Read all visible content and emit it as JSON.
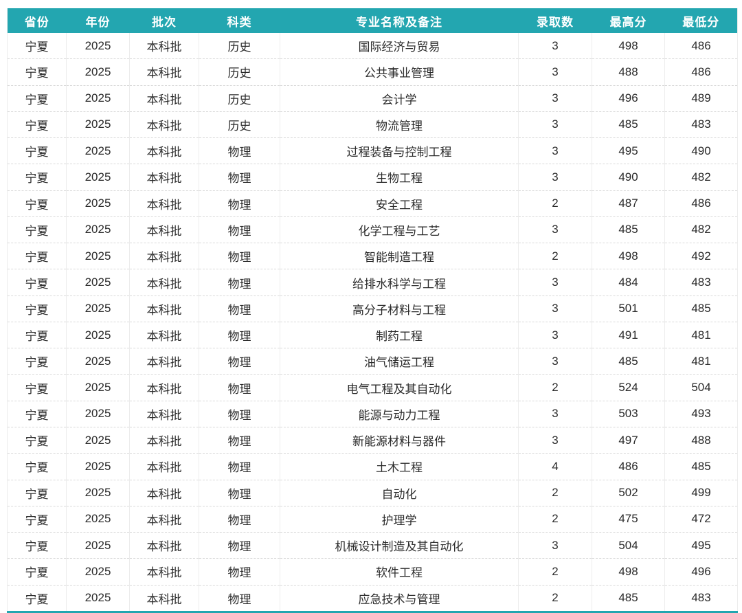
{
  "theme": {
    "header_background": "#23a6b0",
    "header_text_color": "#ffffff",
    "body_text_color": "#2b2b2b",
    "row_divider_color": "#d8d8d8",
    "column_divider_color": "#ececec",
    "bottom_border_color": "#23a6b0",
    "page_background": "#ffffff"
  },
  "chart_data": {
    "type": "table",
    "title": "",
    "column_keys": [
      "province",
      "year",
      "batch",
      "subject-type",
      "major-name",
      "admitted-count",
      "highest-score",
      "lowest-score"
    ],
    "columns": [
      "省份",
      "年份",
      "批次",
      "科类",
      "专业名称及备注",
      "录取数",
      "最高分",
      "最低分"
    ],
    "rows": [
      [
        "宁夏",
        "2025",
        "本科批",
        "历史",
        "国际经济与贸易",
        "3",
        "498",
        "486"
      ],
      [
        "宁夏",
        "2025",
        "本科批",
        "历史",
        "公共事业管理",
        "3",
        "488",
        "486"
      ],
      [
        "宁夏",
        "2025",
        "本科批",
        "历史",
        "会计学",
        "3",
        "496",
        "489"
      ],
      [
        "宁夏",
        "2025",
        "本科批",
        "历史",
        "物流管理",
        "3",
        "485",
        "483"
      ],
      [
        "宁夏",
        "2025",
        "本科批",
        "物理",
        "过程装备与控制工程",
        "3",
        "495",
        "490"
      ],
      [
        "宁夏",
        "2025",
        "本科批",
        "物理",
        "生物工程",
        "3",
        "490",
        "482"
      ],
      [
        "宁夏",
        "2025",
        "本科批",
        "物理",
        "安全工程",
        "2",
        "487",
        "486"
      ],
      [
        "宁夏",
        "2025",
        "本科批",
        "物理",
        "化学工程与工艺",
        "3",
        "485",
        "482"
      ],
      [
        "宁夏",
        "2025",
        "本科批",
        "物理",
        "智能制造工程",
        "2",
        "498",
        "492"
      ],
      [
        "宁夏",
        "2025",
        "本科批",
        "物理",
        "给排水科学与工程",
        "3",
        "484",
        "483"
      ],
      [
        "宁夏",
        "2025",
        "本科批",
        "物理",
        "高分子材料与工程",
        "3",
        "501",
        "485"
      ],
      [
        "宁夏",
        "2025",
        "本科批",
        "物理",
        "制药工程",
        "3",
        "491",
        "481"
      ],
      [
        "宁夏",
        "2025",
        "本科批",
        "物理",
        "油气储运工程",
        "3",
        "485",
        "481"
      ],
      [
        "宁夏",
        "2025",
        "本科批",
        "物理",
        "电气工程及其自动化",
        "2",
        "524",
        "504"
      ],
      [
        "宁夏",
        "2025",
        "本科批",
        "物理",
        "能源与动力工程",
        "3",
        "503",
        "493"
      ],
      [
        "宁夏",
        "2025",
        "本科批",
        "物理",
        "新能源材料与器件",
        "3",
        "497",
        "488"
      ],
      [
        "宁夏",
        "2025",
        "本科批",
        "物理",
        "土木工程",
        "4",
        "486",
        "485"
      ],
      [
        "宁夏",
        "2025",
        "本科批",
        "物理",
        "自动化",
        "2",
        "502",
        "499"
      ],
      [
        "宁夏",
        "2025",
        "本科批",
        "物理",
        "护理学",
        "2",
        "475",
        "472"
      ],
      [
        "宁夏",
        "2025",
        "本科批",
        "物理",
        "机械设计制造及其自动化",
        "3",
        "504",
        "495"
      ],
      [
        "宁夏",
        "2025",
        "本科批",
        "物理",
        "软件工程",
        "2",
        "498",
        "496"
      ],
      [
        "宁夏",
        "2025",
        "本科批",
        "物理",
        "应急技术与管理",
        "2",
        "485",
        "483"
      ]
    ]
  }
}
